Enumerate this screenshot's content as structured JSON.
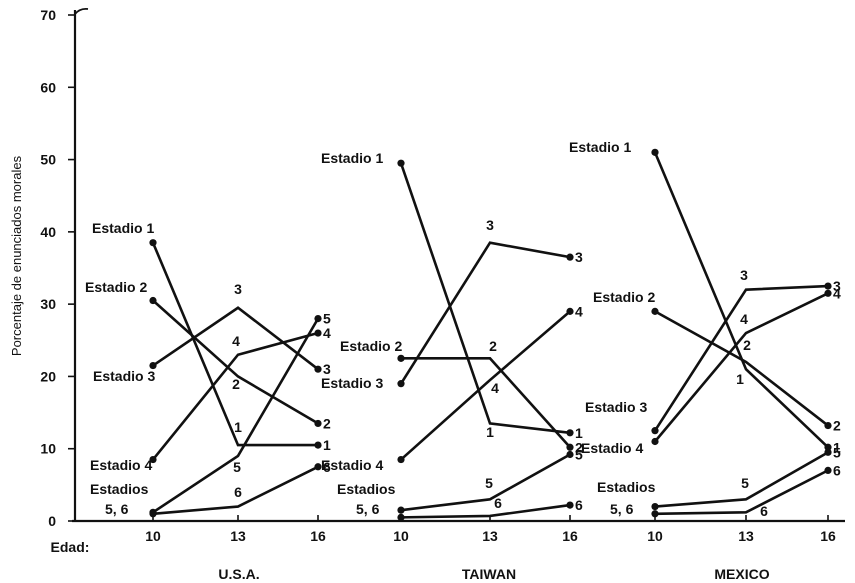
{
  "chart_data": {
    "type": "line",
    "ylabel": "Porcentaje de enunciados morales",
    "xlabel": "Edad:",
    "ylim": [
      0,
      70
    ],
    "yticks": [
      0,
      10,
      20,
      30,
      40,
      50,
      60,
      70
    ],
    "panels": [
      {
        "name": "U.S.A.",
        "x": [
          10,
          13,
          16
        ],
        "series": [
          {
            "name": "Estadio 1",
            "values": [
              38.5,
              10.5,
              10.5
            ],
            "end_label": "1"
          },
          {
            "name": "Estadio 2",
            "values": [
              30.5,
              20,
              13.5
            ],
            "end_label": "2"
          },
          {
            "name": "Estadio 3",
            "values": [
              21.5,
              29.5,
              21
            ],
            "end_label": "3"
          },
          {
            "name": "Estadio 4",
            "values": [
              8.5,
              23,
              26
            ],
            "end_label": "4"
          },
          {
            "name": "5",
            "values": [
              1.2,
              9,
              28
            ],
            "end_label": "5"
          },
          {
            "name": "6",
            "values": [
              1,
              2,
              7.5
            ],
            "end_label": "6"
          }
        ]
      },
      {
        "name": "TAIWAN",
        "x": [
          10,
          13,
          16
        ],
        "series": [
          {
            "name": "Estadio 1",
            "values": [
              49.5,
              13.5,
              12.2
            ],
            "end_label": "1"
          },
          {
            "name": "Estadio 2",
            "values": [
              22.5,
              22.5,
              10.2
            ],
            "end_label": "2"
          },
          {
            "name": "Estadio 3",
            "values": [
              19,
              38.5,
              36.5
            ],
            "end_label": "3"
          },
          {
            "name": "Estadio 4",
            "values": [
              8.5,
              19.5,
              29
            ],
            "end_label": "4"
          },
          {
            "name": "5",
            "values": [
              1.5,
              3,
              9.2
            ],
            "end_label": "5"
          },
          {
            "name": "6",
            "values": [
              0.5,
              0.7,
              2.2
            ],
            "end_label": "6"
          }
        ]
      },
      {
        "name": "MEXICO",
        "x": [
          10,
          13,
          16
        ],
        "series": [
          {
            "name": "Estadio 1",
            "values": [
              51,
              21,
              10.2
            ],
            "end_label": "1"
          },
          {
            "name": "Estadio 2",
            "values": [
              29,
              22,
              13.2
            ],
            "end_label": "2"
          },
          {
            "name": "Estadio 3",
            "values": [
              12.5,
              32,
              32.5
            ],
            "end_label": "3"
          },
          {
            "name": "Estadio 4",
            "values": [
              11,
              26,
              31.5
            ],
            "end_label": "4"
          },
          {
            "name": "5",
            "values": [
              2,
              3,
              9.5
            ],
            "end_label": "5"
          },
          {
            "name": "6",
            "values": [
              1,
              1.2,
              7
            ],
            "end_label": "6"
          }
        ]
      }
    ],
    "labels": {
      "estadio_1": "Estadio 1",
      "estadio_2": "Estadio 2",
      "estadio_3": "Estadio 3",
      "estadio_4": "Estadio 4",
      "estadios": "Estadios",
      "five_six": "5, 6",
      "mid_1": "1",
      "mid_2": "2",
      "mid_3": "3",
      "mid_4": "4",
      "mid_5": "5",
      "mid_6": "6"
    }
  }
}
